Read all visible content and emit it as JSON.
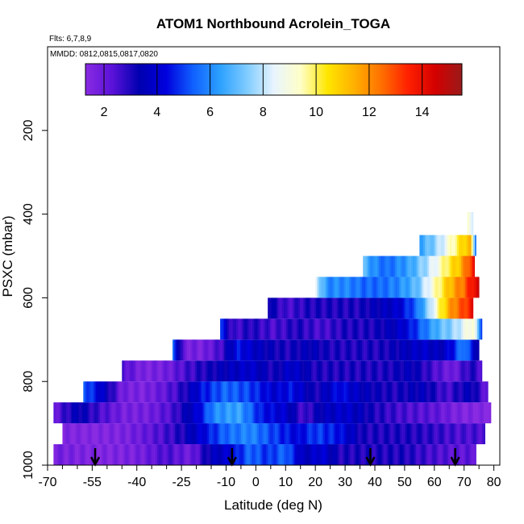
{
  "chart_data": {
    "type": "heatmap",
    "title": "ATOM1 Northbound Acrolein_TOGA",
    "flights_label": "Flts: 6,7,8,9",
    "dates_label": "MMDD: 0812,0815,0817,0820",
    "xlabel": "Latitude (deg N)",
    "ylabel": "PSXC (mbar)",
    "xlim": [
      -70,
      82
    ],
    "ylim": [
      1000,
      0
    ],
    "xticks": [
      -70,
      -55,
      -40,
      -25,
      -10,
      0,
      10,
      20,
      30,
      40,
      50,
      60,
      70,
      80
    ],
    "xtick_labels": [
      "-70",
      "-55",
      "-40",
      "-25",
      "-10",
      "0",
      "10",
      "20",
      "30",
      "40",
      "50",
      "60",
      "70",
      "80"
    ],
    "yticks": [
      200,
      400,
      600,
      800,
      1000
    ],
    "ytick_labels": [
      "200",
      "400",
      "600",
      "800",
      "1000"
    ],
    "colorbar": {
      "min": 1.3,
      "max": 15.5,
      "ticks": [
        2,
        4,
        6,
        8,
        10,
        12,
        14
      ],
      "tick_labels": [
        "2",
        "4",
        "6",
        "8",
        "10",
        "12",
        "14"
      ],
      "colors": [
        "#8a2be2",
        "#5a12d8",
        "#0000b0",
        "#0000dd",
        "#1060ff",
        "#2ca0ff",
        "#7ecbff",
        "#e8f4ff",
        "#ffffc8",
        "#ffe600",
        "#ffb000",
        "#ff7000",
        "#ff2000",
        "#d40000",
        "#9a1a1a"
      ]
    },
    "flight_track_arrows_lat": [
      -54,
      -8,
      38.5,
      67
    ],
    "bands": [
      {
        "p_top": 950,
        "p_bot": 1000,
        "lat_start": -68,
        "lat_end": 74,
        "lats": [
          -68,
          -60,
          -50,
          -40,
          -30,
          -22,
          -15,
          -8,
          -2,
          4,
          10,
          16,
          22,
          28,
          34,
          40,
          50,
          60,
          68,
          74
        ],
        "vals": [
          1.8,
          1.6,
          1.5,
          1.7,
          2.5,
          1.9,
          3.5,
          4.2,
          5.5,
          4.8,
          5.5,
          3.5,
          4.2,
          3.0,
          3.0,
          3.0,
          3.0,
          2.5,
          2.2,
          2.2
        ]
      },
      {
        "p_top": 900,
        "p_bot": 950,
        "lat_start": -65,
        "lat_end": 77,
        "lats": [
          -65,
          -55,
          -45,
          -35,
          -25,
          -18,
          -10,
          -2,
          6,
          14,
          20,
          28,
          36,
          44,
          52,
          60,
          68,
          77
        ],
        "vals": [
          1.5,
          1.4,
          1.6,
          2.2,
          3.0,
          4.2,
          5.5,
          6.0,
          5.0,
          4.2,
          5.0,
          4.5,
          3.0,
          3.0,
          3.0,
          2.8,
          2.5,
          2.5
        ]
      },
      {
        "p_top": 850,
        "p_bot": 900,
        "lat_start": -68,
        "lat_end": 79,
        "lats": [
          -68,
          -60,
          -52,
          -44,
          -36,
          -28,
          -20,
          -14,
          -6,
          2,
          10,
          16,
          22,
          30,
          40,
          50,
          60,
          68,
          74,
          79
        ],
        "vals": [
          2.0,
          3.5,
          2.5,
          1.7,
          1.8,
          2.5,
          4.0,
          6.0,
          6.5,
          4.5,
          4.0,
          2.5,
          3.5,
          4.0,
          3.0,
          2.5,
          2.2,
          1.6,
          1.4,
          1.4
        ]
      },
      {
        "p_top": 800,
        "p_bot": 850,
        "lat_start": -58,
        "lat_end": 78,
        "lats": [
          -58,
          -52,
          -45,
          -38,
          -30,
          -24,
          -18,
          -10,
          -2,
          6,
          12,
          20,
          28,
          36,
          46,
          56,
          64,
          72,
          78
        ],
        "vals": [
          5.5,
          4.0,
          1.8,
          1.6,
          2.2,
          3.0,
          4.5,
          5.5,
          5.0,
          4.0,
          4.5,
          3.0,
          4.5,
          3.5,
          3.0,
          3.5,
          2.5,
          3.5,
          2.0
        ]
      },
      {
        "p_top": 750,
        "p_bot": 800,
        "lat_start": -45,
        "lat_end": 76,
        "lats": [
          -45,
          -38,
          -30,
          -24,
          -18,
          -10,
          -2,
          6,
          12,
          20,
          28,
          36,
          44,
          52,
          60,
          66,
          72,
          76
        ],
        "vals": [
          2.5,
          1.6,
          1.8,
          2.5,
          3.0,
          3.5,
          4.0,
          3.0,
          4.0,
          3.0,
          3.0,
          3.0,
          3.0,
          3.5,
          2.5,
          1.8,
          3.0,
          2.5
        ]
      },
      {
        "p_top": 700,
        "p_bot": 750,
        "lat_start": -28,
        "lat_end": 75,
        "lats": [
          -28,
          -24,
          -18,
          -12,
          -6,
          2,
          10,
          18,
          26,
          34,
          42,
          50,
          56,
          62,
          66,
          70,
          75
        ],
        "vals": [
          5.5,
          1.8,
          1.7,
          2.5,
          4.5,
          3.5,
          3.0,
          3.5,
          3.0,
          3.0,
          3.0,
          3.5,
          4.0,
          3.5,
          4.5,
          6.0,
          3.0
        ]
      },
      {
        "p_top": 650,
        "p_bot": 700,
        "lat_start": -12,
        "lat_end": 76,
        "lats": [
          -12,
          -8,
          -2,
          6,
          14,
          22,
          30,
          38,
          46,
          52,
          58,
          62,
          66,
          70,
          73,
          76
        ],
        "vals": [
          5.0,
          2.5,
          3.0,
          2.5,
          3.0,
          2.5,
          3.0,
          3.0,
          3.5,
          4.5,
          6.0,
          7.0,
          7.5,
          8.5,
          9.5,
          5.0
        ]
      },
      {
        "p_top": 600,
        "p_bot": 650,
        "lat_start": 4,
        "lat_end": 73,
        "lats": [
          4,
          10,
          18,
          26,
          34,
          42,
          48,
          54,
          58,
          62,
          66,
          70,
          73
        ],
        "vals": [
          3.5,
          2.5,
          3.0,
          3.0,
          3.0,
          3.5,
          4.0,
          5.5,
          7.5,
          10.0,
          12.0,
          13.0,
          14.0
        ]
      },
      {
        "p_top": 550,
        "p_bot": 600,
        "lat_start": 20,
        "lat_end": 75,
        "lats": [
          20,
          24,
          30,
          36,
          42,
          48,
          54,
          58,
          62,
          66,
          70,
          73,
          75
        ],
        "vals": [
          8.5,
          6.0,
          6.0,
          5.5,
          5.5,
          6.0,
          7.0,
          8.5,
          10.0,
          11.5,
          12.5,
          14.0,
          14.5
        ]
      },
      {
        "p_top": 500,
        "p_bot": 550,
        "lat_start": 36,
        "lat_end": 73.5,
        "lats": [
          36,
          40,
          44,
          48,
          52,
          56,
          60,
          64,
          68,
          71,
          73.5
        ],
        "vals": [
          7.0,
          6.0,
          5.5,
          6.0,
          6.5,
          7.5,
          8.5,
          10.0,
          11.0,
          12.5,
          14.0
        ]
      },
      {
        "p_top": 450,
        "p_bot": 500,
        "lat_start": 55,
        "lat_end": 74,
        "lats": [
          55,
          58,
          62,
          66,
          69,
          72,
          74
        ],
        "vals": [
          6.5,
          7.0,
          8.0,
          9.5,
          10.5,
          11.5,
          5.5
        ]
      },
      {
        "p_top": 395,
        "p_bot": 450,
        "lat_start": 71,
        "lat_end": 73,
        "lats": [
          71,
          73
        ],
        "vals": [
          9.0,
          8.5
        ]
      }
    ]
  }
}
